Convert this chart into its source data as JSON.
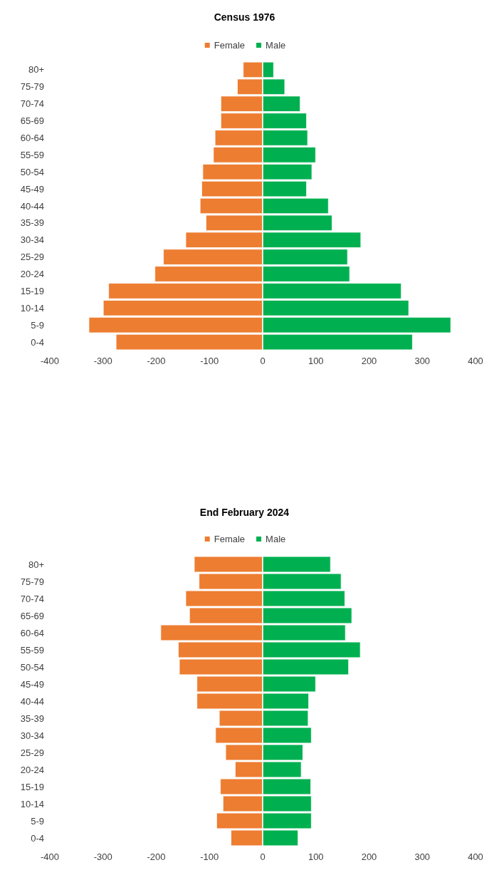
{
  "chart_data": [
    {
      "type": "bar",
      "title": "Census 1976",
      "orientation": "horizontal",
      "stacked": true,
      "legend": "top",
      "grid": false,
      "categories": [
        "80+",
        "75-79",
        "70-74",
        "65-69",
        "60-64",
        "55-59",
        "50-54",
        "45-49",
        "40-44",
        "35-39",
        "30-34",
        "25-29",
        "20-24",
        "15-19",
        "10-14",
        "5-9",
        "0-4"
      ],
      "xlim": [
        -400,
        400
      ],
      "xticks": [
        -400,
        -300,
        -200,
        -100,
        0,
        100,
        200,
        300,
        400
      ],
      "series": [
        {
          "name": "Female",
          "color": "#ed7d31",
          "values": [
            -37,
            -48,
            -79,
            -79,
            -90,
            -93,
            -113,
            -115,
            -118,
            -107,
            -145,
            -187,
            -203,
            -290,
            -300,
            -327,
            -276
          ]
        },
        {
          "name": "Male",
          "color": "#00b050",
          "values": [
            21,
            42,
            71,
            83,
            85,
            100,
            93,
            83,
            124,
            131,
            185,
            160,
            164,
            261,
            275,
            354,
            282
          ]
        }
      ]
    },
    {
      "type": "bar",
      "title": "End February 2024",
      "orientation": "horizontal",
      "stacked": true,
      "legend": "top",
      "grid": false,
      "categories": [
        "80+",
        "75-79",
        "70-74",
        "65-69",
        "60-64",
        "55-59",
        "50-54",
        "45-49",
        "40-44",
        "35-39",
        "30-34",
        "25-29",
        "20-24",
        "15-19",
        "10-14",
        "5-9",
        "0-4"
      ],
      "xlim": [
        -400,
        400
      ],
      "xticks": [
        -400,
        -300,
        -200,
        -100,
        0,
        100,
        200,
        300,
        400
      ],
      "series": [
        {
          "name": "Female",
          "color": "#ed7d31",
          "values": [
            -129,
            -120,
            -145,
            -138,
            -192,
            -159,
            -157,
            -124,
            -124,
            -82,
            -89,
            -70,
            -52,
            -80,
            -75,
            -87,
            -60
          ]
        },
        {
          "name": "Male",
          "color": "#00b050",
          "values": [
            128,
            148,
            155,
            168,
            156,
            184,
            162,
            100,
            87,
            86,
            92,
            76,
            73,
            91,
            92,
            92,
            67
          ]
        }
      ]
    }
  ]
}
